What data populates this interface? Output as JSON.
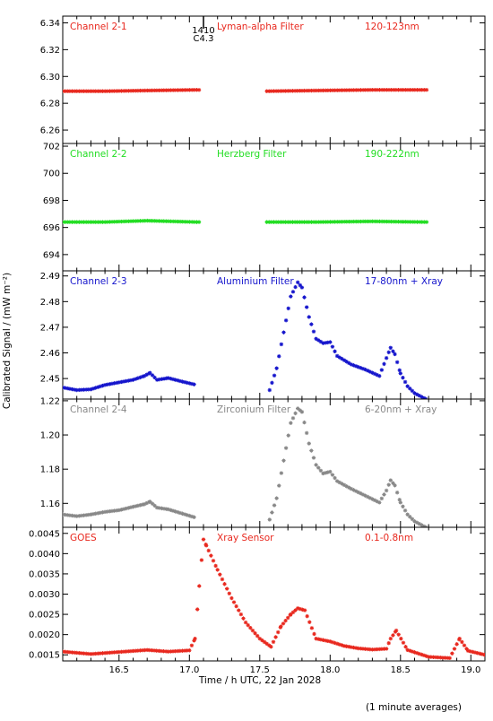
{
  "ylabel": "Calibrated Signal / (mW m⁻²)",
  "xlabel": "Time / h UTC, 22 Jan 2028",
  "footnote": "(1 minute averages)",
  "flare_marker": {
    "x": 17.1,
    "label_top": "1410",
    "label_bottom": "C4.3"
  },
  "x_axis": {
    "xlim": [
      16.1,
      19.1
    ],
    "ticks": [
      16.5,
      17.0,
      17.5,
      18.0,
      18.5,
      19.0
    ],
    "tick_labels": [
      "16.5",
      "17.0",
      "17.5",
      "18.0",
      "18.5",
      "19.0"
    ]
  },
  "panels": [
    {
      "channel": "Channel 2-1",
      "filter": "Lyman-alpha Filter",
      "band": "120-123nm",
      "color": "#e8281e",
      "ylim": [
        6.25,
        6.345
      ],
      "yticks": [
        6.26,
        6.28,
        6.3,
        6.32,
        6.34
      ],
      "ytick_labels": [
        "6.26",
        "6.28",
        "6.30",
        "6.32",
        "6.34"
      ]
    },
    {
      "channel": "Channel 2-2",
      "filter": "Herzberg Filter",
      "band": "190-222nm",
      "color": "#22dd22",
      "ylim": [
        692.8,
        702.2
      ],
      "yticks": [
        694,
        696,
        698,
        700,
        702
      ],
      "ytick_labels": [
        "694",
        "696",
        "698",
        "700",
        "702"
      ]
    },
    {
      "channel": "Channel 2-3",
      "filter": "Aluminium Filter",
      "band": "17-80nm + Xray",
      "color": "#1515cc",
      "ylim": [
        2.442,
        2.492
      ],
      "yticks": [
        2.45,
        2.46,
        2.47,
        2.48,
        2.49
      ],
      "ytick_labels": [
        "2.45",
        "2.46",
        "2.47",
        "2.48",
        "2.49"
      ]
    },
    {
      "channel": "Channel 2-4",
      "filter": "Zirconium Filter",
      "band": "6-20nm + Xray",
      "color": "#888888",
      "ylim": [
        1.146,
        1.221
      ],
      "yticks": [
        1.16,
        1.18,
        1.2,
        1.22
      ],
      "ytick_labels": [
        "1.16",
        "1.18",
        "1.20",
        "1.22"
      ]
    },
    {
      "channel": "GOES",
      "filter": "Xray Sensor",
      "band": "0.1-0.8nm",
      "color": "#e8281e",
      "ylim": [
        0.00135,
        0.00465
      ],
      "yticks": [
        0.0015,
        0.002,
        0.0025,
        0.003,
        0.0035,
        0.004,
        0.0045
      ],
      "ytick_labels": [
        "0.0015",
        "0.0020",
        "0.0025",
        "0.0030",
        "0.0035",
        "0.0040",
        "0.0045"
      ]
    }
  ],
  "chart_data": [
    {
      "type": "scatter",
      "title": "Lyman-alpha Filter",
      "series": [
        {
          "name": "Channel 2-1",
          "x": [
            16.1,
            16.4,
            16.7,
            17.05,
            17.55,
            17.9,
            18.3,
            18.68
          ],
          "y": [
            6.289,
            6.289,
            6.2895,
            6.29,
            6.289,
            6.2895,
            6.29,
            6.29
          ]
        }
      ]
    },
    {
      "type": "scatter",
      "title": "Herzberg Filter",
      "series": [
        {
          "name": "Channel 2-2",
          "x": [
            16.1,
            16.4,
            16.7,
            17.05,
            17.55,
            17.9,
            18.3,
            18.68
          ],
          "y": [
            696.4,
            696.4,
            696.5,
            696.4,
            696.4,
            696.4,
            696.45,
            696.4
          ]
        }
      ]
    },
    {
      "type": "scatter",
      "title": "Aluminium Filter",
      "series": [
        {
          "name": "Channel 2-3",
          "x": [
            16.1,
            16.2,
            16.3,
            16.4,
            16.5,
            16.6,
            16.68,
            16.72,
            16.77,
            16.85,
            16.95,
            17.05,
            17.57,
            17.62,
            17.67,
            17.72,
            17.77,
            17.8,
            17.85,
            17.9,
            17.95,
            18.0,
            18.05,
            18.15,
            18.25,
            18.35,
            18.4,
            18.43,
            18.46,
            18.5,
            18.55,
            18.6,
            18.68
          ],
          "y": [
            2.4465,
            2.4455,
            2.4458,
            2.4475,
            2.4485,
            2.4495,
            2.451,
            2.4522,
            2.4495,
            2.4502,
            2.4488,
            2.4475,
            2.4455,
            2.454,
            2.468,
            2.482,
            2.4875,
            2.4855,
            2.474,
            2.4655,
            2.4638,
            2.4642,
            2.4588,
            2.4555,
            2.4535,
            2.451,
            2.458,
            2.462,
            2.4595,
            2.452,
            2.447,
            2.4443,
            2.442
          ]
        }
      ]
    },
    {
      "type": "scatter",
      "title": "Zirconium Filter",
      "series": [
        {
          "name": "Channel 2-4",
          "x": [
            16.1,
            16.2,
            16.3,
            16.4,
            16.5,
            16.6,
            16.68,
            16.72,
            16.77,
            16.85,
            16.95,
            17.05,
            17.57,
            17.62,
            17.67,
            17.72,
            17.77,
            17.8,
            17.85,
            17.9,
            17.95,
            18.0,
            18.05,
            18.15,
            18.25,
            18.35,
            18.4,
            18.43,
            18.46,
            18.5,
            18.55,
            18.6,
            18.68
          ],
          "y": [
            1.1535,
            1.1525,
            1.1535,
            1.155,
            1.156,
            1.158,
            1.1595,
            1.161,
            1.1575,
            1.1565,
            1.154,
            1.1515,
            1.1505,
            1.163,
            1.185,
            1.207,
            1.2155,
            1.2135,
            1.195,
            1.1825,
            1.1775,
            1.1785,
            1.173,
            1.1685,
            1.1645,
            1.1605,
            1.1675,
            1.1735,
            1.1705,
            1.1605,
            1.1535,
            1.1495,
            1.146
          ]
        }
      ]
    },
    {
      "type": "scatter",
      "title": "Xray Sensor",
      "series": [
        {
          "name": "GOES",
          "x": [
            16.1,
            16.3,
            16.5,
            16.7,
            16.85,
            17.0,
            17.04,
            17.07,
            17.1,
            17.12,
            17.2,
            17.3,
            17.4,
            17.5,
            17.58,
            17.65,
            17.72,
            17.77,
            17.82,
            17.9,
            18.0,
            18.1,
            18.2,
            18.3,
            18.4,
            18.43,
            18.47,
            18.55,
            18.7,
            18.85,
            18.92,
            18.98,
            19.1
          ],
          "y": [
            0.00158,
            0.00152,
            0.00157,
            0.00162,
            0.00158,
            0.00161,
            0.0019,
            0.0032,
            0.00435,
            0.0042,
            0.0036,
            0.0029,
            0.0023,
            0.0019,
            0.0017,
            0.0022,
            0.0025,
            0.00265,
            0.0026,
            0.0019,
            0.00183,
            0.00172,
            0.00166,
            0.00163,
            0.00165,
            0.0019,
            0.0021,
            0.00162,
            0.00145,
            0.00142,
            0.0019,
            0.0016,
            0.0015
          ]
        }
      ]
    }
  ]
}
